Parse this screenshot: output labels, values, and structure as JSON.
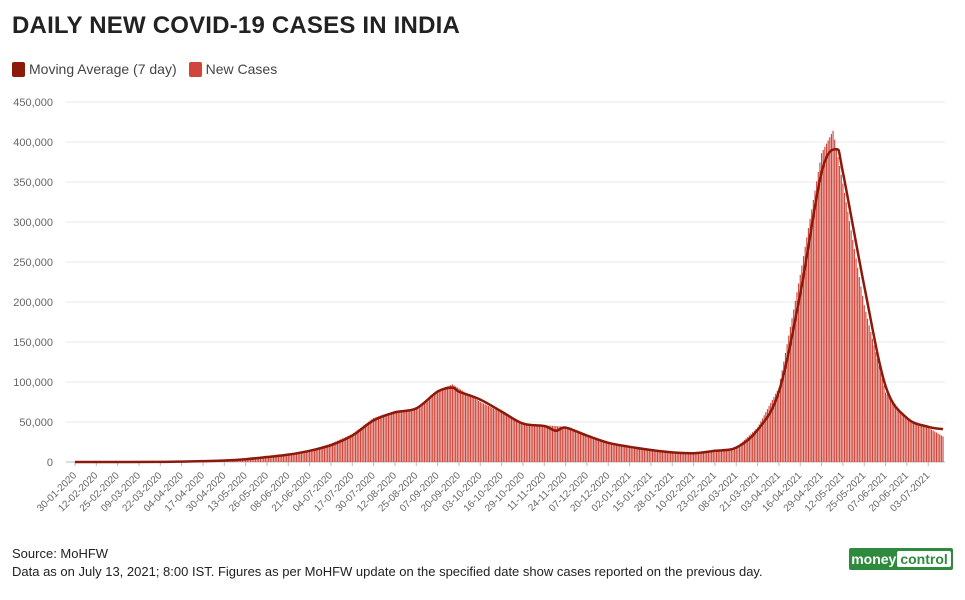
{
  "title": "DAILY NEW COVID-19 CASES IN INDIA",
  "legend": [
    {
      "label": "Moving Average (7 day)",
      "color": "#8b1a0c"
    },
    {
      "label": "New Cases",
      "color": "#d0463a"
    }
  ],
  "footer": {
    "source": "Source: MoHFW",
    "note": "Data as on July 13, 2021; 8:00 IST. Figures as per MoHFW update on the specified date show cases reported on the previous day."
  },
  "logo": {
    "part1": "money",
    "part2": "control"
  },
  "chart_data": {
    "type": "bar",
    "title": "DAILY NEW COVID-19 CASES IN INDIA",
    "xlabel": "",
    "ylabel": "",
    "ylim": [
      0,
      450000
    ],
    "yticks": [
      0,
      50000,
      100000,
      150000,
      200000,
      250000,
      300000,
      350000,
      400000,
      450000
    ],
    "ytick_labels": [
      "0",
      "50,000",
      "100,000",
      "150,000",
      "200,000",
      "250,000",
      "300,000",
      "350,000",
      "400,000",
      "450,000"
    ],
    "x_start": "30-01-2020",
    "x_end": "12-07-2021",
    "xtick_labels": [
      "30-01-2020",
      "12-02-2020",
      "25-02-2020",
      "09-03-2020",
      "22-03-2020",
      "04-04-2020",
      "17-04-2020",
      "30-04-2020",
      "13-05-2020",
      "26-05-2020",
      "08-06-2020",
      "21-06-2020",
      "04-07-2020",
      "17-07-2020",
      "30-07-2020",
      "12-08-2020",
      "25-08-2020",
      "07-09-2020",
      "20-09-2020",
      "03-10-2020",
      "16-10-2020",
      "29-10-2020",
      "11-11-2020",
      "24-11-2020",
      "07-12-2020",
      "20-12-2020",
      "02-01-2021",
      "15-01-2021",
      "28-01-2021",
      "10-02-2021",
      "23-02-2021",
      "08-03-2021",
      "21-03-2021",
      "03-04-2021",
      "16-04-2021",
      "29-04-2021",
      "12-05-2021",
      "25-05-2021",
      "07-06-2021",
      "20-06-2021",
      "03-07-2021"
    ],
    "grid": true,
    "legend_position": "top-left",
    "series": [
      {
        "name": "New Cases",
        "color": "#d0463a",
        "kind": "bar",
        "points": [
          [
            "30-01-2020",
            0
          ],
          [
            "01-03-2020",
            50
          ],
          [
            "22-03-2020",
            100
          ],
          [
            "04-04-2020",
            600
          ],
          [
            "17-04-2020",
            1200
          ],
          [
            "30-04-2020",
            2000
          ],
          [
            "13-05-2020",
            3700
          ],
          [
            "26-05-2020",
            6500
          ],
          [
            "08-06-2020",
            9500
          ],
          [
            "21-06-2020",
            15000
          ],
          [
            "04-07-2020",
            23000
          ],
          [
            "17-07-2020",
            35000
          ],
          [
            "30-07-2020",
            55000
          ],
          [
            "12-08-2020",
            64000
          ],
          [
            "25-08-2020",
            67000
          ],
          [
            "07-09-2020",
            90000
          ],
          [
            "16-09-2020",
            97000
          ],
          [
            "20-09-2020",
            92000
          ],
          [
            "03-10-2020",
            75000
          ],
          [
            "16-10-2020",
            62000
          ],
          [
            "29-10-2020",
            48000
          ],
          [
            "11-11-2020",
            46000
          ],
          [
            "24-11-2020",
            44000
          ],
          [
            "07-12-2020",
            32000
          ],
          [
            "20-12-2020",
            24000
          ],
          [
            "02-01-2021",
            19000
          ],
          [
            "15-01-2021",
            15000
          ],
          [
            "28-01-2021",
            12000
          ],
          [
            "10-02-2021",
            11000
          ],
          [
            "23-02-2021",
            14000
          ],
          [
            "08-03-2021",
            18000
          ],
          [
            "21-03-2021",
            43000
          ],
          [
            "03-04-2021",
            93000
          ],
          [
            "16-04-2021",
            234000
          ],
          [
            "29-04-2021",
            386000
          ],
          [
            "06-05-2021",
            414000
          ],
          [
            "12-05-2021",
            348000
          ],
          [
            "25-05-2021",
            196000
          ],
          [
            "07-06-2021",
            87000
          ],
          [
            "20-06-2021",
            54000
          ],
          [
            "03-07-2021",
            43000
          ],
          [
            "12-07-2021",
            32000
          ]
        ]
      },
      {
        "name": "Moving Average (7 day)",
        "color": "#8b1a0c",
        "kind": "line",
        "points": [
          [
            "30-01-2020",
            0
          ],
          [
            "01-03-2020",
            50
          ],
          [
            "22-03-2020",
            100
          ],
          [
            "04-04-2020",
            500
          ],
          [
            "17-04-2020",
            1100
          ],
          [
            "30-04-2020",
            1800
          ],
          [
            "13-05-2020",
            3500
          ],
          [
            "26-05-2020",
            6200
          ],
          [
            "08-06-2020",
            9200
          ],
          [
            "21-06-2020",
            14000
          ],
          [
            "04-07-2020",
            21000
          ],
          [
            "17-07-2020",
            33000
          ],
          [
            "30-07-2020",
            52000
          ],
          [
            "12-08-2020",
            62000
          ],
          [
            "25-08-2020",
            67000
          ],
          [
            "07-09-2020",
            88000
          ],
          [
            "16-09-2020",
            93000
          ],
          [
            "20-09-2020",
            88000
          ],
          [
            "03-10-2020",
            78000
          ],
          [
            "16-10-2020",
            63000
          ],
          [
            "29-10-2020",
            48000
          ],
          [
            "11-11-2020",
            45000
          ],
          [
            "18-11-2020",
            39000
          ],
          [
            "24-11-2020",
            43000
          ],
          [
            "07-12-2020",
            33000
          ],
          [
            "20-12-2020",
            24000
          ],
          [
            "02-01-2021",
            19000
          ],
          [
            "15-01-2021",
            15000
          ],
          [
            "28-01-2021",
            12000
          ],
          [
            "10-02-2021",
            11000
          ],
          [
            "23-02-2021",
            14000
          ],
          [
            "08-03-2021",
            18000
          ],
          [
            "21-03-2021",
            40000
          ],
          [
            "03-04-2021",
            88000
          ],
          [
            "16-04-2021",
            210000
          ],
          [
            "29-04-2021",
            362000
          ],
          [
            "08-05-2021",
            391000
          ],
          [
            "12-05-2021",
            362000
          ],
          [
            "25-05-2021",
            220000
          ],
          [
            "07-06-2021",
            95000
          ],
          [
            "20-06-2021",
            55000
          ],
          [
            "03-07-2021",
            44000
          ],
          [
            "12-07-2021",
            41000
          ]
        ]
      }
    ]
  }
}
